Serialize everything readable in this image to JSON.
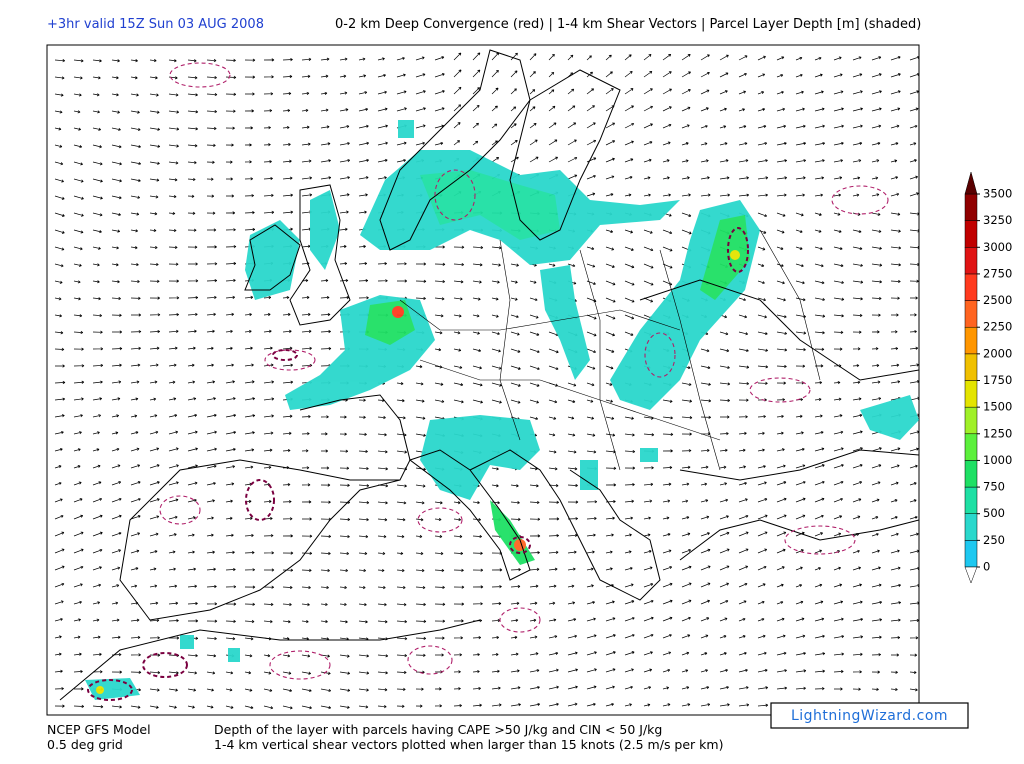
{
  "header": {
    "run": "+3hr valid 15Z Sun 03 AUG 2008",
    "title": "0-2 km Deep Convergence (red) | 1-4 km Shear Vectors | Parcel Layer Depth [m] (shaded)"
  },
  "colorbar": {
    "ticks": [
      0,
      250,
      500,
      750,
      1000,
      1250,
      1500,
      1750,
      2000,
      2250,
      2500,
      2750,
      3000,
      3250,
      3500
    ],
    "colors": [
      "#1ec8f0",
      "#2ad8cc",
      "#1ee0a4",
      "#1ee064",
      "#5cf03c",
      "#a0f028",
      "#e4e400",
      "#f0c000",
      "#ff9600",
      "#ff6420",
      "#ff3a1e",
      "#e01414",
      "#c00000",
      "#900000",
      "#5a0000"
    ]
  },
  "footer": {
    "model": "NCEP GFS Model",
    "grid": "0.5 deg grid",
    "line1": "Depth of the layer with parcels having CAPE >50 J/kg and CIN < 50 J/kg",
    "line2": "1-4 km vertical shear vectors plotted when larger than 15 knots (2.5 m/s per km)",
    "logo": "LightningWizard.com"
  }
}
